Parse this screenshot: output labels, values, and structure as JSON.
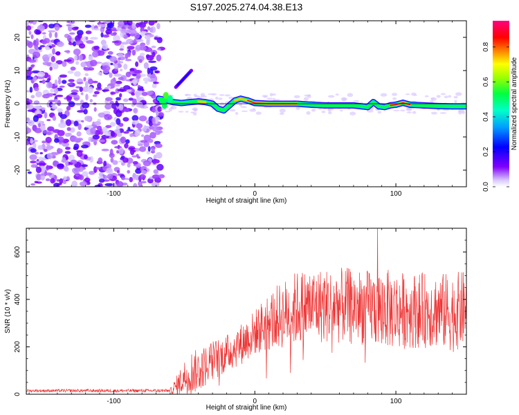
{
  "chart_data": [
    {
      "type": "heatmap",
      "title": "S197.2025.274.04.38.E13",
      "xlabel": "Height of straight line (km)",
      "ylabel": "Frequency (Hz)",
      "xlim": [
        -162,
        150
      ],
      "ylim": [
        -25,
        25
      ],
      "x_ticks": [
        -100,
        0,
        100
      ],
      "y_ticks": [
        -20,
        -10,
        0,
        10,
        20
      ],
      "colorbar": {
        "label": "Normalized spectral amplitude",
        "range": [
          0,
          0.95
        ],
        "ticks": [
          0.0,
          0.2,
          0.4,
          0.6,
          0.8
        ],
        "colormap": [
          "#ffffff",
          "#8000ff",
          "#0000ff",
          "#00c8ff",
          "#00ff80",
          "#80ff00",
          "#ffff00",
          "#ff8000",
          "#ff0000",
          "#ff0080"
        ]
      },
      "noise_region_x": [
        -162,
        -66
      ],
      "ridge": {
        "x": [
          -68,
          -62,
          -58,
          -52,
          -46,
          -40,
          -35,
          -30,
          -26,
          -22,
          -18,
          -14,
          -10,
          -5,
          0,
          10,
          20,
          30,
          40,
          50,
          60,
          70,
          80,
          84,
          88,
          92,
          96,
          100,
          105,
          110,
          120,
          130,
          140,
          150
        ],
        "y": [
          1.5,
          1.0,
          0.5,
          0.2,
          0.5,
          0.7,
          0.5,
          0.0,
          -1.5,
          -2.0,
          -0.5,
          1.0,
          1.5,
          1.0,
          0.2,
          0.0,
          0.0,
          0.0,
          -0.3,
          -0.5,
          -0.5,
          -0.5,
          -1.0,
          0.5,
          -0.8,
          -1.0,
          -0.5,
          -0.3,
          0.3,
          -0.3,
          -0.5,
          -0.7,
          -0.8,
          -0.8
        ],
        "amplitude": [
          0.5,
          0.6,
          0.55,
          0.7,
          0.6,
          0.75,
          0.7,
          0.6,
          0.65,
          0.55,
          0.6,
          0.7,
          0.75,
          0.8,
          0.85,
          0.9,
          0.95,
          0.85,
          0.6,
          0.55,
          0.5,
          0.5,
          0.55,
          0.5,
          0.55,
          0.6,
          0.8,
          0.85,
          0.9,
          0.85,
          0.6,
          0.55,
          0.7,
          0.6
        ]
      }
    },
    {
      "type": "line",
      "xlabel": "Height of straight line (km)",
      "ylabel": "SNR (10 * v/v)",
      "xlim": [
        -162,
        150
      ],
      "ylim": [
        0,
        700
      ],
      "x_ticks": [
        -100,
        0,
        100
      ],
      "y_ticks": [
        0,
        200,
        400,
        600
      ],
      "color": "#ee3333",
      "envelope": {
        "x": [
          -162,
          -60,
          -55,
          -50,
          -45,
          -40,
          -35,
          -30,
          -20,
          -10,
          0,
          10,
          20,
          30,
          40,
          50,
          60,
          70,
          80,
          90,
          100,
          110,
          120,
          130,
          140,
          150
        ],
        "baseline": [
          15,
          15,
          40,
          80,
          100,
          110,
          130,
          150,
          180,
          220,
          270,
          320,
          350,
          380,
          390,
          390,
          390,
          390,
          380,
          380,
          370,
          370,
          370,
          370,
          360,
          380
        ],
        "spread": [
          10,
          12,
          60,
          90,
          120,
          110,
          110,
          110,
          100,
          110,
          120,
          160,
          180,
          200,
          200,
          200,
          200,
          200,
          200,
          210,
          210,
          200,
          200,
          200,
          210,
          200
        ]
      },
      "spike": {
        "x": 87,
        "y": 705
      }
    }
  ]
}
